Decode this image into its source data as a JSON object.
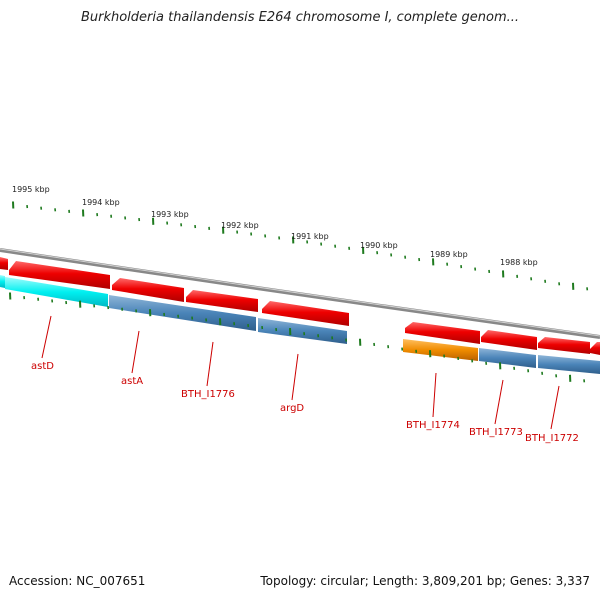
{
  "header": {
    "title": "Burkholderia thailandensis E264 chromosome I, complete genom..."
  },
  "footer": {
    "accession": "Accession: NC_007651",
    "summary": "Topology: circular; Length: 3,809,201 bp; Genes: 3,337"
  },
  "colors": {
    "cds_forward": "#ee0000",
    "gene_blue": "#4a84b8",
    "highlight_cyan": "#00f0f0",
    "highlight_orange": "#f08c00",
    "backbone": "#888888",
    "tick": "#1e7a1e",
    "label": "#cc0000",
    "kbp_text": "#222222"
  },
  "ruler": {
    "kbp_labels": [
      "1995 kbp",
      "1994 kbp",
      "1993 kbp",
      "1992 kbp",
      "1991 kbp",
      "1990 kbp",
      "1989 kbp",
      "1988 kbp"
    ]
  },
  "genes": [
    {
      "name": "astD"
    },
    {
      "name": "astA"
    },
    {
      "name": "BTH_I1776"
    },
    {
      "name": "argD"
    },
    {
      "name": "BTH_I1774"
    },
    {
      "name": "BTH_I1773"
    },
    {
      "name": "BTH_I1772"
    }
  ]
}
